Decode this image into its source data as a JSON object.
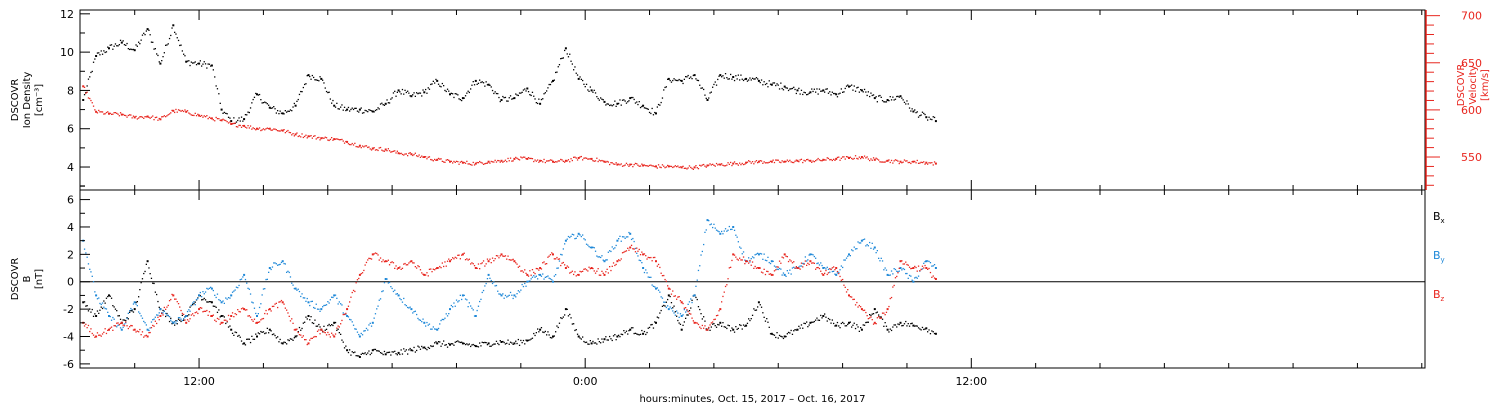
{
  "colors": {
    "black": "#000000",
    "red": "#e8261f",
    "blue": "#1e88d8",
    "axis": "#000000"
  },
  "xaxis": {
    "label": "hours:minutes, Oct. 15, 2017 – Oct. 16, 2017",
    "tick_labels": [
      "12:00",
      "0:00",
      "12:00"
    ],
    "tick_hours": [
      12,
      24,
      36
    ],
    "range_hours": [
      8.3,
      50.1
    ],
    "minor_tick_step_hours": 2,
    "data_end_hours": 34.9
  },
  "chart_data": [
    {
      "type": "scatter",
      "panel": "top",
      "ylabel_left": [
        "DSCOVR",
        "Ion Density",
        "[cm⁻³]"
      ],
      "ylabel_right": [
        "DSCOVR",
        "Velocity",
        "[km/s]"
      ],
      "ylim_left": [
        2.8,
        12.2
      ],
      "ylim_right": [
        515,
        706
      ],
      "yticks_left": [
        4,
        6,
        8,
        10,
        12
      ],
      "yticks_right": [
        550,
        600,
        650,
        700
      ],
      "yticks_right_labels": [
        "550",
        "600",
        "650",
        "700"
      ],
      "grid": false,
      "series": [
        {
          "name": "Ion Density",
          "color": "black",
          "axis": "left",
          "x": [
            8.4,
            8.8,
            9.2,
            9.6,
            10.0,
            10.4,
            10.8,
            11.2,
            11.6,
            12.0,
            12.4,
            12.7,
            13.0,
            13.4,
            13.8,
            14.2,
            14.6,
            15.0,
            15.4,
            15.8,
            16.2,
            16.6,
            17.0,
            17.4,
            17.8,
            18.2,
            18.6,
            19.0,
            19.4,
            19.8,
            20.2,
            20.6,
            21.0,
            21.4,
            21.8,
            22.2,
            22.6,
            23.0,
            23.4,
            23.8,
            24.2,
            24.6,
            25.0,
            25.4,
            25.8,
            26.2,
            26.6,
            27.0,
            27.4,
            27.8,
            28.2,
            28.6,
            29.0,
            29.4,
            29.8,
            30.2,
            30.6,
            31.0,
            31.4,
            31.8,
            32.2,
            32.6,
            33.0,
            33.4,
            33.8,
            34.2,
            34.6,
            34.9
          ],
          "y": [
            7.5,
            9.8,
            10.2,
            10.5,
            10.1,
            11.2,
            9.4,
            11.4,
            9.5,
            9.4,
            9.3,
            7.0,
            6.4,
            6.5,
            7.8,
            7.1,
            6.8,
            7.2,
            8.8,
            8.6,
            7.2,
            7.0,
            7.0,
            6.9,
            7.3,
            8.0,
            7.7,
            7.9,
            8.5,
            7.8,
            7.6,
            8.5,
            8.3,
            7.5,
            7.6,
            8.1,
            7.3,
            8.5,
            10.2,
            8.6,
            8.0,
            7.4,
            7.3,
            7.6,
            7.2,
            6.8,
            8.6,
            8.5,
            8.8,
            7.5,
            8.8,
            8.7,
            8.6,
            8.5,
            8.3,
            8.2,
            8.0,
            7.9,
            8.0,
            7.8,
            8.2,
            8.0,
            7.6,
            7.5,
            7.7,
            6.9,
            6.6,
            6.4
          ]
        },
        {
          "name": "Velocity",
          "color": "red",
          "axis": "right",
          "x": [
            8.4,
            8.8,
            9.2,
            9.6,
            10.0,
            10.4,
            10.8,
            11.2,
            11.6,
            12.0,
            12.4,
            12.7,
            13.0,
            13.4,
            13.8,
            14.2,
            14.6,
            15.0,
            15.4,
            15.8,
            16.2,
            16.6,
            17.0,
            17.4,
            17.8,
            18.2,
            18.6,
            19.0,
            19.4,
            19.8,
            20.2,
            20.6,
            21.0,
            21.4,
            21.8,
            22.2,
            22.6,
            23.0,
            23.4,
            23.8,
            24.2,
            24.6,
            25.0,
            25.4,
            25.8,
            26.2,
            26.6,
            27.0,
            27.4,
            27.8,
            28.2,
            28.6,
            29.0,
            29.4,
            29.8,
            30.2,
            30.6,
            31.0,
            31.4,
            31.8,
            32.2,
            32.6,
            33.0,
            33.4,
            33.8,
            34.2,
            34.6,
            34.9
          ],
          "y": [
            625,
            598,
            596,
            595,
            592,
            593,
            590,
            599,
            598,
            594,
            591,
            589,
            585,
            583,
            580,
            580,
            578,
            574,
            572,
            570,
            569,
            566,
            562,
            559,
            558,
            554,
            553,
            550,
            547,
            545,
            544,
            543,
            545,
            546,
            548,
            548,
            546,
            545,
            546,
            549,
            548,
            545,
            542,
            542,
            541,
            540,
            540,
            539,
            539,
            541,
            542,
            543,
            544,
            545,
            545,
            545,
            546,
            546,
            547,
            548,
            549,
            550,
            547,
            546,
            545,
            545,
            544,
            543
          ]
        }
      ]
    },
    {
      "type": "scatter",
      "panel": "bottom",
      "ylabel_left": [
        "DSCOVR",
        "B",
        "[nT]"
      ],
      "ylim": [
        -6.3,
        6.7
      ],
      "yticks": [
        -6,
        -4,
        -2,
        0,
        2,
        4,
        6
      ],
      "zero_line": true,
      "grid": false,
      "legend": {
        "placement": "right",
        "entries": [
          {
            "label": "B",
            "sub": "x",
            "color": "black"
          },
          {
            "label": "B",
            "sub": "y",
            "color": "blue"
          },
          {
            "label": "B",
            "sub": "z",
            "color": "red"
          }
        ]
      },
      "series": [
        {
          "name": "Bx",
          "color": "black",
          "x": [
            8.4,
            8.8,
            9.2,
            9.6,
            10.0,
            10.4,
            10.8,
            11.2,
            11.6,
            12.0,
            12.4,
            12.7,
            13.0,
            13.4,
            13.8,
            14.2,
            14.6,
            15.0,
            15.4,
            15.8,
            16.2,
            16.6,
            17.0,
            17.4,
            17.8,
            18.2,
            18.6,
            19.0,
            19.4,
            19.8,
            20.2,
            20.6,
            21.0,
            21.4,
            21.8,
            22.2,
            22.6,
            23.0,
            23.4,
            23.8,
            24.2,
            24.6,
            25.0,
            25.4,
            25.8,
            26.2,
            26.6,
            27.0,
            27.4,
            27.8,
            28.2,
            28.6,
            29.0,
            29.4,
            29.8,
            30.2,
            30.6,
            31.0,
            31.4,
            31.8,
            32.2,
            32.6,
            33.0,
            33.4,
            33.8,
            34.2,
            34.6,
            34.9
          ],
          "y": [
            -1.5,
            -2.5,
            -1.0,
            -3.0,
            -2.0,
            1.5,
            -2.0,
            -3.0,
            -2.5,
            -1.0,
            -1.5,
            -2.5,
            -3.5,
            -4.5,
            -4.0,
            -3.5,
            -4.5,
            -4.0,
            -2.5,
            -3.5,
            -3.0,
            -5.0,
            -5.5,
            -5.0,
            -5.3,
            -5.2,
            -5.0,
            -4.8,
            -4.5,
            -4.6,
            -4.5,
            -4.7,
            -4.5,
            -4.4,
            -4.5,
            -4.3,
            -3.5,
            -4.0,
            -2.0,
            -4.0,
            -4.5,
            -4.2,
            -4.0,
            -3.5,
            -3.8,
            -3.0,
            -1.0,
            -3.5,
            -1.0,
            -3.5,
            -3.0,
            -3.5,
            -3.2,
            -1.5,
            -3.8,
            -4.0,
            -3.5,
            -3.0,
            -2.5,
            -3.2,
            -3.0,
            -3.5,
            -2.0,
            -3.5,
            -3.0,
            -3.2,
            -3.4,
            -3.8
          ]
        },
        {
          "name": "By",
          "color": "blue",
          "x": [
            8.4,
            8.8,
            9.2,
            9.6,
            10.0,
            10.4,
            10.8,
            11.2,
            11.6,
            12.0,
            12.4,
            12.7,
            13.0,
            13.4,
            13.8,
            14.2,
            14.6,
            15.0,
            15.4,
            15.8,
            16.2,
            16.6,
            17.0,
            17.4,
            17.8,
            18.2,
            18.6,
            19.0,
            19.4,
            19.8,
            20.2,
            20.6,
            21.0,
            21.4,
            21.8,
            22.2,
            22.6,
            23.0,
            23.4,
            23.8,
            24.2,
            24.6,
            25.0,
            25.4,
            25.8,
            26.2,
            26.6,
            27.0,
            27.4,
            27.8,
            28.2,
            28.6,
            29.0,
            29.4,
            29.8,
            30.2,
            30.6,
            31.0,
            31.4,
            31.8,
            32.2,
            32.6,
            33.0,
            33.4,
            33.8,
            34.2,
            34.6,
            34.9
          ],
          "y": [
            3.0,
            -1.0,
            -2.5,
            -3.5,
            -1.5,
            -3.5,
            -2.0,
            -3.0,
            -2.5,
            -1.0,
            -0.5,
            -1.5,
            -1.0,
            0.5,
            -2.5,
            1.0,
            1.5,
            -0.5,
            -1.5,
            -2.0,
            -1.0,
            -2.5,
            -4.0,
            -3.0,
            0.2,
            -1.0,
            -2.0,
            -3.0,
            -3.5,
            -2.0,
            -1.0,
            -2.5,
            0.5,
            -1.0,
            -1.0,
            0.0,
            0.5,
            0.0,
            3.0,
            3.5,
            2.5,
            1.5,
            3.0,
            3.5,
            1.0,
            -0.5,
            -2.0,
            -2.5,
            -1.0,
            4.5,
            3.5,
            4.0,
            1.5,
            2.0,
            1.5,
            0.5,
            1.0,
            2.0,
            1.0,
            0.5,
            2.0,
            3.0,
            2.5,
            0.5,
            1.0,
            0.0,
            1.5,
            1.0
          ]
        },
        {
          "name": "Bz",
          "color": "red",
          "x": [
            8.4,
            8.8,
            9.2,
            9.6,
            10.0,
            10.4,
            10.8,
            11.2,
            11.6,
            12.0,
            12.4,
            12.7,
            13.0,
            13.4,
            13.8,
            14.2,
            14.6,
            15.0,
            15.4,
            15.8,
            16.2,
            16.6,
            17.0,
            17.4,
            17.8,
            18.2,
            18.6,
            19.0,
            19.4,
            19.8,
            20.2,
            20.6,
            21.0,
            21.4,
            21.8,
            22.2,
            22.6,
            23.0,
            23.4,
            23.8,
            24.2,
            24.6,
            25.0,
            25.4,
            25.8,
            26.2,
            26.6,
            27.0,
            27.4,
            27.8,
            28.2,
            28.6,
            29.0,
            29.4,
            29.8,
            30.2,
            30.6,
            31.0,
            31.4,
            31.8,
            32.2,
            32.6,
            33.0,
            33.4,
            33.8,
            34.2,
            34.6,
            34.9
          ],
          "y": [
            -3.0,
            -4.0,
            -3.5,
            -3.0,
            -3.5,
            -4.0,
            -2.5,
            -1.0,
            -3.0,
            -2.0,
            -2.5,
            -3.0,
            -2.5,
            -2.0,
            -3.0,
            -2.0,
            -1.5,
            -3.5,
            -4.5,
            -3.5,
            -4.0,
            -2.0,
            0.5,
            2.0,
            1.5,
            1.0,
            1.5,
            0.5,
            1.0,
            1.5,
            2.0,
            1.0,
            1.5,
            2.0,
            1.5,
            0.5,
            1.0,
            2.0,
            1.0,
            0.5,
            1.0,
            0.5,
            1.5,
            2.5,
            2.0,
            1.5,
            -0.5,
            -1.5,
            -3.0,
            -3.5,
            -2.0,
            2.0,
            1.5,
            1.0,
            0.5,
            2.0,
            1.0,
            1.5,
            0.5,
            1.0,
            -1.0,
            -2.0,
            -3.0,
            -2.0,
            1.5,
            1.0,
            1.0,
            0.2
          ]
        }
      ]
    }
  ]
}
